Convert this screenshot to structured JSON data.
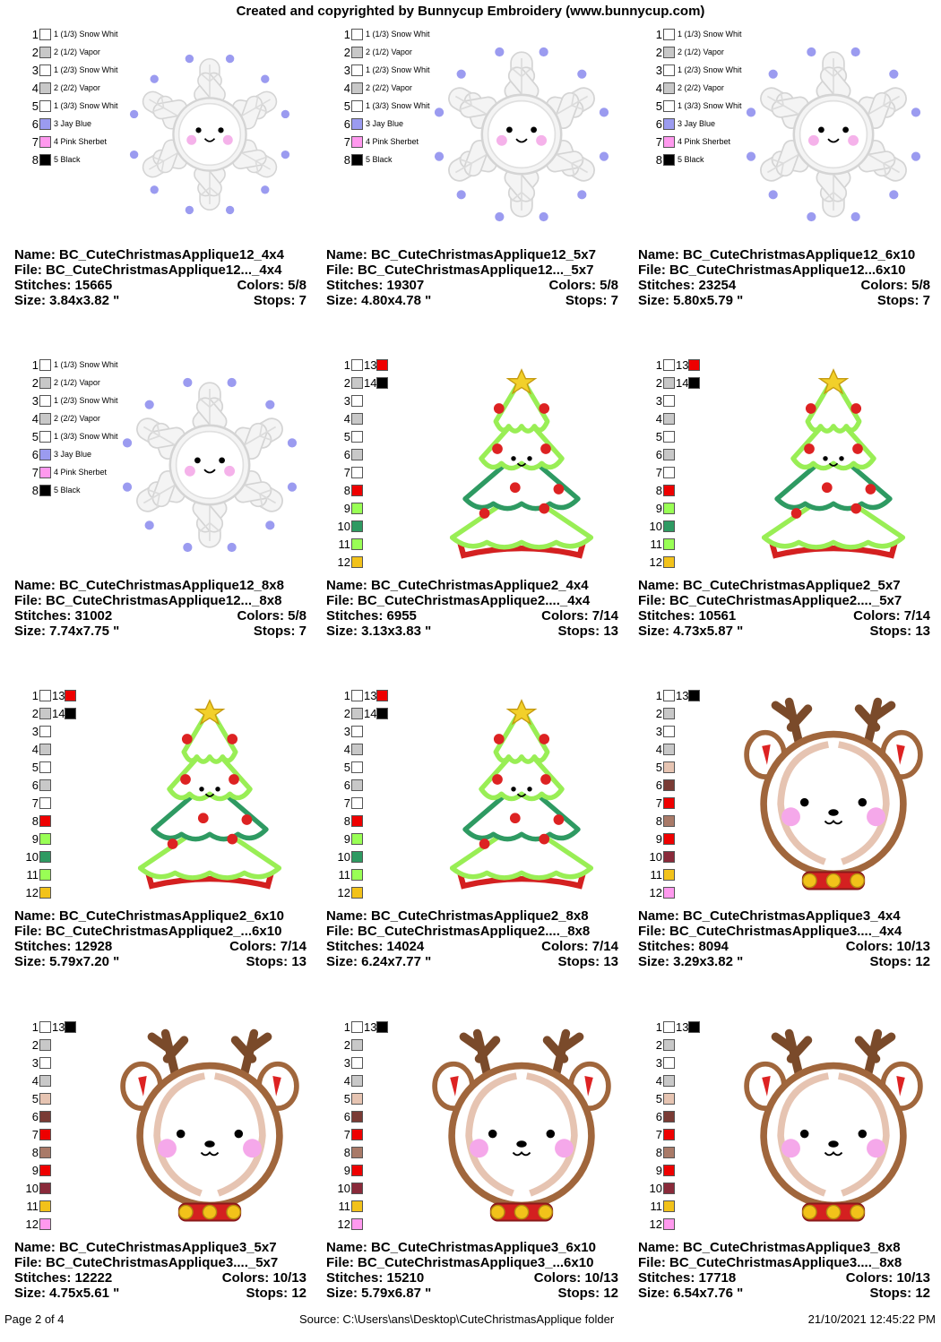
{
  "header": {
    "title": "Created and copyrighted by Bunnycup Embroidery (www.bunnycup.com)"
  },
  "footer": {
    "page": "Page 2 of 4",
    "source": "Source: C:\\Users\\ans\\Desktop\\CuteChristmasApplique folder",
    "datetime": "21/10/2021 12:45:22 PM"
  },
  "palettes": {
    "snowflake": [
      {
        "label": "1 (1/3) Snow Whit",
        "color": "#ffffff"
      },
      {
        "label": "2 (1/2) Vapor",
        "color": "#c8c8c8"
      },
      {
        "label": "1 (2/3) Snow Whit",
        "color": "#ffffff"
      },
      {
        "label": "2 (2/2) Vapor",
        "color": "#c8c8c8"
      },
      {
        "label": "1 (3/3) Snow Whit",
        "color": "#ffffff"
      },
      {
        "label": "3 Jay Blue",
        "color": "#9b9bf0"
      },
      {
        "label": "4 Pink Sherbet",
        "color": "#ff99ee"
      },
      {
        "label": "5 Black",
        "color": "#000000"
      }
    ],
    "tree": [
      {
        "color": "#ffffff",
        "num2": "13",
        "color2": "#ee0000"
      },
      {
        "color": "#c8c8c8",
        "num2": "14",
        "color2": "#000000"
      },
      {
        "color": "#ffffff"
      },
      {
        "color": "#c8c8c8"
      },
      {
        "color": "#ffffff"
      },
      {
        "color": "#c8c8c8"
      },
      {
        "color": "#ffffff"
      },
      {
        "color": "#ee0000"
      },
      {
        "color": "#99ff55"
      },
      {
        "color": "#2e9a62"
      },
      {
        "color": "#99ff55"
      },
      {
        "color": "#f2c21a"
      }
    ],
    "reindeer": [
      {
        "color": "#ffffff",
        "num2": "13",
        "color2": "#000000"
      },
      {
        "color": "#c8c8c8"
      },
      {
        "color": "#ffffff"
      },
      {
        "color": "#c8c8c8"
      },
      {
        "color": "#e6c4b2"
      },
      {
        "color": "#7a3b35"
      },
      {
        "color": "#ee0000"
      },
      {
        "color": "#a97a68"
      },
      {
        "color": "#ee0000"
      },
      {
        "color": "#8a2a3a"
      },
      {
        "color": "#f2c21a"
      },
      {
        "color": "#ff99ee"
      }
    ]
  },
  "designs": [
    {
      "type": "snowflake",
      "name": "Name: BC_CuteChristmasApplique12_4x4",
      "file": "File: BC_CuteChristmasApplique12..._4x4",
      "stitches": "Stitches: 15665",
      "colors": "Colors: 5/8",
      "size": "Size: 3.84x3.82 \"",
      "stops": "Stops: 7",
      "scale": 0.78
    },
    {
      "type": "snowflake",
      "name": "Name: BC_CuteChristmasApplique12_5x7",
      "file": "File: BC_CuteChristmasApplique12..._5x7",
      "stitches": "Stitches: 19307",
      "colors": "Colors: 5/8",
      "size": "Size: 4.80x4.78 \"",
      "stops": "Stops: 7",
      "scale": 0.85
    },
    {
      "type": "snowflake",
      "name": "Name: BC_CuteChristmasApplique12_6x10",
      "file": "File: BC_CuteChristmasApplique12...6x10",
      "stitches": "Stitches: 23254",
      "colors": "Colors: 5/8",
      "size": "Size: 5.80x5.79 \"",
      "stops": "Stops: 7",
      "scale": 0.85
    },
    {
      "type": "snowflake",
      "name": "Name: BC_CuteChristmasApplique12_8x8",
      "file": "File: BC_CuteChristmasApplique12..._8x8",
      "stitches": "Stitches: 31002",
      "colors": "Colors: 5/8",
      "size": "Size: 7.74x7.75 \"",
      "stops": "Stops: 7",
      "scale": 0.85
    },
    {
      "type": "tree",
      "name": "Name: BC_CuteChristmasApplique2_4x4",
      "file": "File: BC_CuteChristmasApplique2...._4x4",
      "stitches": "Stitches: 6955",
      "colors": "Colors: 7/14",
      "size": "Size: 3.13x3.83 \"",
      "stops": "Stops: 13",
      "scale": 0.9
    },
    {
      "type": "tree",
      "name": "Name: BC_CuteChristmasApplique2_5x7",
      "file": "File: BC_CuteChristmasApplique2...._5x7",
      "stitches": "Stitches: 10561",
      "colors": "Colors: 7/14",
      "size": "Size: 4.73x5.87 \"",
      "stops": "Stops: 13",
      "scale": 0.9
    },
    {
      "type": "tree",
      "name": "Name: BC_CuteChristmasApplique2_6x10",
      "file": "File: BC_CuteChristmasApplique2_...6x10",
      "stitches": "Stitches: 12928",
      "colors": "Colors: 7/14",
      "size": "Size: 5.79x7.20 \"",
      "stops": "Stops: 13",
      "scale": 0.9
    },
    {
      "type": "tree",
      "name": "Name: BC_CuteChristmasApplique2_8x8",
      "file": "File: BC_CuteChristmasApplique2...._8x8",
      "stitches": "Stitches: 14024",
      "colors": "Colors: 7/14",
      "size": "Size: 6.24x7.77 \"",
      "stops": "Stops: 13",
      "scale": 0.9
    },
    {
      "type": "reindeer",
      "name": "Name: BC_CuteChristmasApplique3_4x4",
      "file": "File: BC_CuteChristmasApplique3...._4x4",
      "stitches": "Stitches: 8094",
      "colors": "Colors: 10/13",
      "size": "Size: 3.29x3.82 \"",
      "stops": "Stops: 12",
      "scale": 0.95
    },
    {
      "type": "reindeer",
      "name": "Name: BC_CuteChristmasApplique3_5x7",
      "file": "File: BC_CuteChristmasApplique3...._5x7",
      "stitches": "Stitches: 12222",
      "colors": "Colors: 10/13",
      "size": "Size: 4.75x5.61 \"",
      "stops": "Stops: 12",
      "scale": 0.95
    },
    {
      "type": "reindeer",
      "name": "Name: BC_CuteChristmasApplique3_6x10",
      "file": "File: BC_CuteChristmasApplique3_...6x10",
      "stitches": "Stitches: 15210",
      "colors": "Colors: 10/13",
      "size": "Size: 5.79x6.87 \"",
      "stops": "Stops: 12",
      "scale": 0.95
    },
    {
      "type": "reindeer",
      "name": "Name: BC_CuteChristmasApplique3_8x8",
      "file": "File: BC_CuteChristmasApplique3...._8x8",
      "stitches": "Stitches: 17718",
      "colors": "Colors: 10/13",
      "size": "Size: 6.54x7.76 \"",
      "stops": "Stops: 12",
      "scale": 0.95
    }
  ]
}
